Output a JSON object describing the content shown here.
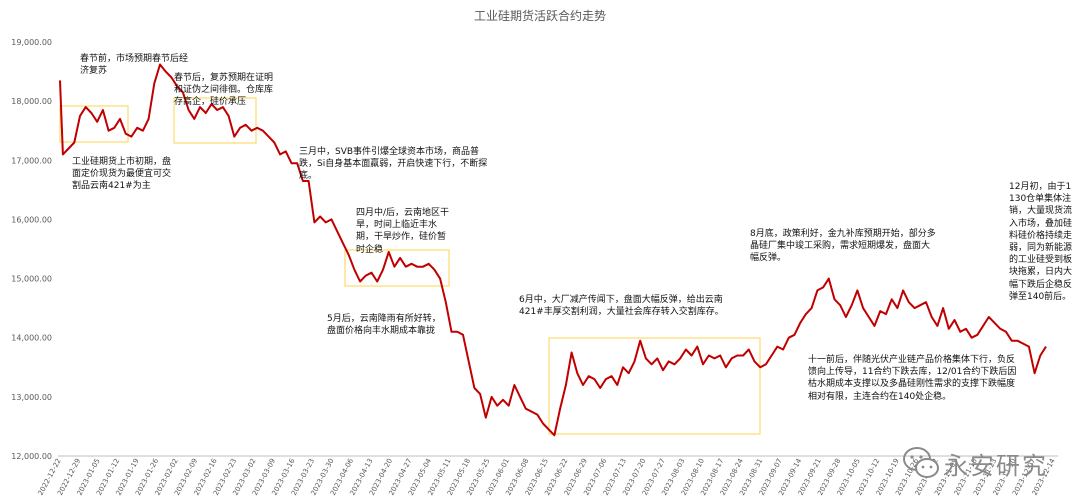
{
  "chart_data": {
    "type": "line",
    "title": "工业硅期货活跃合约走势",
    "ylim": [
      12000,
      19000
    ],
    "yticks": [
      "19,000.00",
      "18,000.00",
      "17,000.00",
      "16,000.00",
      "15,000.00",
      "14,000.00",
      "13,000.00",
      "12,000.00"
    ],
    "ytick_values": [
      19000,
      18000,
      17000,
      16000,
      15000,
      14000,
      13000,
      12000
    ],
    "x_tick_labels": [
      "2022-12-22",
      "2022-12-29",
      "2023-01-05",
      "2023-01-12",
      "2023-01-19",
      "2023-01-26",
      "2023-02-02",
      "2023-02-09",
      "2023-02-16",
      "2023-02-23",
      "2023-03-02",
      "2023-03-09",
      "2023-03-16",
      "2023-03-23",
      "2023-03-30",
      "2023-04-06",
      "2023-04-13",
      "2023-04-20",
      "2023-04-27",
      "2023-05-04",
      "2023-05-11",
      "2023-05-18",
      "2023-05-25",
      "2023-06-01",
      "2023-06-08",
      "2023-06-15",
      "2023-06-22",
      "2023-06-29",
      "2023-07-06",
      "2023-07-13",
      "2023-07-20",
      "2023-07-27",
      "2023-08-03",
      "2023-08-10",
      "2023-08-17",
      "2023-08-24",
      "2023-08-31",
      "2023-09-07",
      "2023-09-14",
      "2023-09-21",
      "2023-09-28",
      "2023-10-05",
      "2023-10-12",
      "2023-10-19",
      "2023-10-26",
      "2023-11-02",
      "2023-11-09",
      "2023-11-16",
      "2023-11-23",
      "2023-11-30",
      "2023-12-07",
      "2023-12-14"
    ],
    "series": [
      {
        "color": "#c00000",
        "values": [
          [
            0,
            18350
          ],
          [
            1,
            17100
          ],
          [
            3,
            17200
          ],
          [
            5,
            17300
          ],
          [
            7,
            17750
          ],
          [
            9,
            17900
          ],
          [
            11,
            17800
          ],
          [
            13,
            17650
          ],
          [
            15,
            17850
          ],
          [
            17,
            17500
          ],
          [
            19,
            17550
          ],
          [
            21,
            17700
          ],
          [
            23,
            17450
          ],
          [
            25,
            17400
          ],
          [
            27,
            17550
          ],
          [
            29,
            17500
          ],
          [
            31,
            17700
          ],
          [
            33,
            18300
          ],
          [
            35,
            18620
          ],
          [
            37,
            18500
          ],
          [
            39,
            18400
          ],
          [
            41,
            18250
          ],
          [
            43,
            18150
          ],
          [
            45,
            17850
          ],
          [
            47,
            17700
          ],
          [
            49,
            17900
          ],
          [
            51,
            17800
          ],
          [
            53,
            17950
          ],
          [
            55,
            17850
          ],
          [
            57,
            17900
          ],
          [
            59,
            17750
          ],
          [
            61,
            17400
          ],
          [
            63,
            17550
          ],
          [
            65,
            17600
          ],
          [
            67,
            17500
          ],
          [
            69,
            17550
          ],
          [
            71,
            17500
          ],
          [
            73,
            17400
          ],
          [
            75,
            17300
          ],
          [
            77,
            17100
          ],
          [
            79,
            17150
          ],
          [
            81,
            16950
          ],
          [
            83,
            16950
          ],
          [
            85,
            16650
          ],
          [
            87,
            16650
          ],
          [
            89,
            15950
          ],
          [
            91,
            16050
          ],
          [
            93,
            15950
          ],
          [
            95,
            16000
          ],
          [
            97,
            15800
          ],
          [
            99,
            15600
          ],
          [
            101,
            15400
          ],
          [
            103,
            15150
          ],
          [
            105,
            14950
          ],
          [
            107,
            15050
          ],
          [
            109,
            15100
          ],
          [
            111,
            14950
          ],
          [
            113,
            15150
          ],
          [
            115,
            15450
          ],
          [
            117,
            15200
          ],
          [
            119,
            15350
          ],
          [
            121,
            15200
          ],
          [
            123,
            15250
          ],
          [
            125,
            15200
          ],
          [
            127,
            15200
          ],
          [
            129,
            15250
          ],
          [
            131,
            15150
          ],
          [
            133,
            15000
          ],
          [
            135,
            14600
          ],
          [
            137,
            14100
          ],
          [
            139,
            14100
          ],
          [
            141,
            14050
          ],
          [
            143,
            13600
          ],
          [
            145,
            13150
          ],
          [
            147,
            13050
          ],
          [
            149,
            12650
          ],
          [
            151,
            13000
          ],
          [
            153,
            12850
          ],
          [
            155,
            12950
          ],
          [
            157,
            12850
          ],
          [
            159,
            13200
          ],
          [
            161,
            13000
          ],
          [
            163,
            12800
          ],
          [
            165,
            12750
          ],
          [
            167,
            12700
          ],
          [
            169,
            12550
          ],
          [
            171,
            12450
          ],
          [
            173,
            12350
          ],
          [
            175,
            12800
          ],
          [
            177,
            13200
          ],
          [
            179,
            13750
          ],
          [
            181,
            13400
          ],
          [
            183,
            13200
          ],
          [
            185,
            13350
          ],
          [
            187,
            13300
          ],
          [
            189,
            13150
          ],
          [
            191,
            13300
          ],
          [
            193,
            13350
          ],
          [
            195,
            13200
          ],
          [
            197,
            13500
          ],
          [
            199,
            13400
          ],
          [
            201,
            13600
          ],
          [
            203,
            13950
          ],
          [
            205,
            13650
          ],
          [
            207,
            13550
          ],
          [
            209,
            13650
          ],
          [
            211,
            13450
          ],
          [
            213,
            13600
          ],
          [
            215,
            13550
          ],
          [
            217,
            13650
          ],
          [
            219,
            13800
          ],
          [
            221,
            13700
          ],
          [
            223,
            13850
          ],
          [
            225,
            13550
          ],
          [
            227,
            13700
          ],
          [
            229,
            13650
          ],
          [
            231,
            13700
          ],
          [
            233,
            13500
          ],
          [
            235,
            13650
          ],
          [
            237,
            13700
          ],
          [
            239,
            13700
          ],
          [
            241,
            13800
          ],
          [
            243,
            13600
          ],
          [
            245,
            13500
          ],
          [
            247,
            13550
          ],
          [
            249,
            13700
          ],
          [
            251,
            13850
          ],
          [
            253,
            13800
          ],
          [
            255,
            14000
          ],
          [
            257,
            14050
          ],
          [
            259,
            14250
          ],
          [
            261,
            14400
          ],
          [
            263,
            14500
          ],
          [
            265,
            14800
          ],
          [
            267,
            14850
          ],
          [
            269,
            15000
          ],
          [
            271,
            14650
          ],
          [
            273,
            14550
          ],
          [
            275,
            14350
          ],
          [
            277,
            14550
          ],
          [
            279,
            14800
          ],
          [
            281,
            14500
          ],
          [
            283,
            14350
          ],
          [
            285,
            14200
          ],
          [
            287,
            14450
          ],
          [
            289,
            14400
          ],
          [
            291,
            14650
          ],
          [
            293,
            14500
          ],
          [
            295,
            14800
          ],
          [
            297,
            14600
          ],
          [
            299,
            14500
          ],
          [
            301,
            14550
          ],
          [
            303,
            14600
          ],
          [
            305,
            14350
          ],
          [
            307,
            14200
          ],
          [
            309,
            14500
          ],
          [
            311,
            14150
          ],
          [
            313,
            14300
          ],
          [
            315,
            14100
          ],
          [
            317,
            14150
          ],
          [
            319,
            14000
          ],
          [
            321,
            14050
          ],
          [
            323,
            14200
          ],
          [
            325,
            14350
          ],
          [
            327,
            14250
          ],
          [
            329,
            14150
          ],
          [
            331,
            14100
          ],
          [
            333,
            13950
          ],
          [
            335,
            13950
          ],
          [
            337,
            13900
          ],
          [
            339,
            13850
          ],
          [
            341,
            13400
          ],
          [
            343,
            13700
          ],
          [
            345,
            13850
          ]
        ]
      }
    ],
    "annotations": [
      "春节前，市场预期春节后经济复苏",
      "春节后，复苏预期在证明和证伪之间徘徊。仓库库存高企，硅价承压",
      "工业硅期货上市初期，盘面定价现货为最便宜可交割品云南421#为主",
      "三月中，SVB事件引爆全球资本市场，商品普跌，Si自身基本面羸弱，开启快速下行，不断探底。",
      "四月中/后，云南地区干旱，时间上临近丰水期，干旱炒作，硅价暂时企稳",
      "5月后，云南降雨有所好转，盘面价格向丰水期成本靠拢",
      "6月中，大厂减产传闻下，盘面大幅反弹，给出云南421#丰厚交割利润，大量社会库存转入交割库存。",
      "8月底，政策利好，金九补库预期开始，部分多晶硅厂集中竣工采购，需求短期爆发，盘面大幅反弹。",
      "十一前后，伴随光伏产业链产品价格集体下行，负反馈向上传导，11合约下跌去库，12/01合约下跌后因枯水期成本支撑以及多晶硅刚性需求的支撑下跌幅度相对有限，主连合约在140处企稳。",
      "12月初，由于1130仓单集体注销，大量现货流入市场，叠加硅料硅价格持续走弱，同为新能源的工业硅受到板块拖累，日内大幅下跌后企稳反弹至140前后。"
    ]
  },
  "watermark": {
    "text": "永安研究",
    "icon": "wechat-logo-icon"
  }
}
